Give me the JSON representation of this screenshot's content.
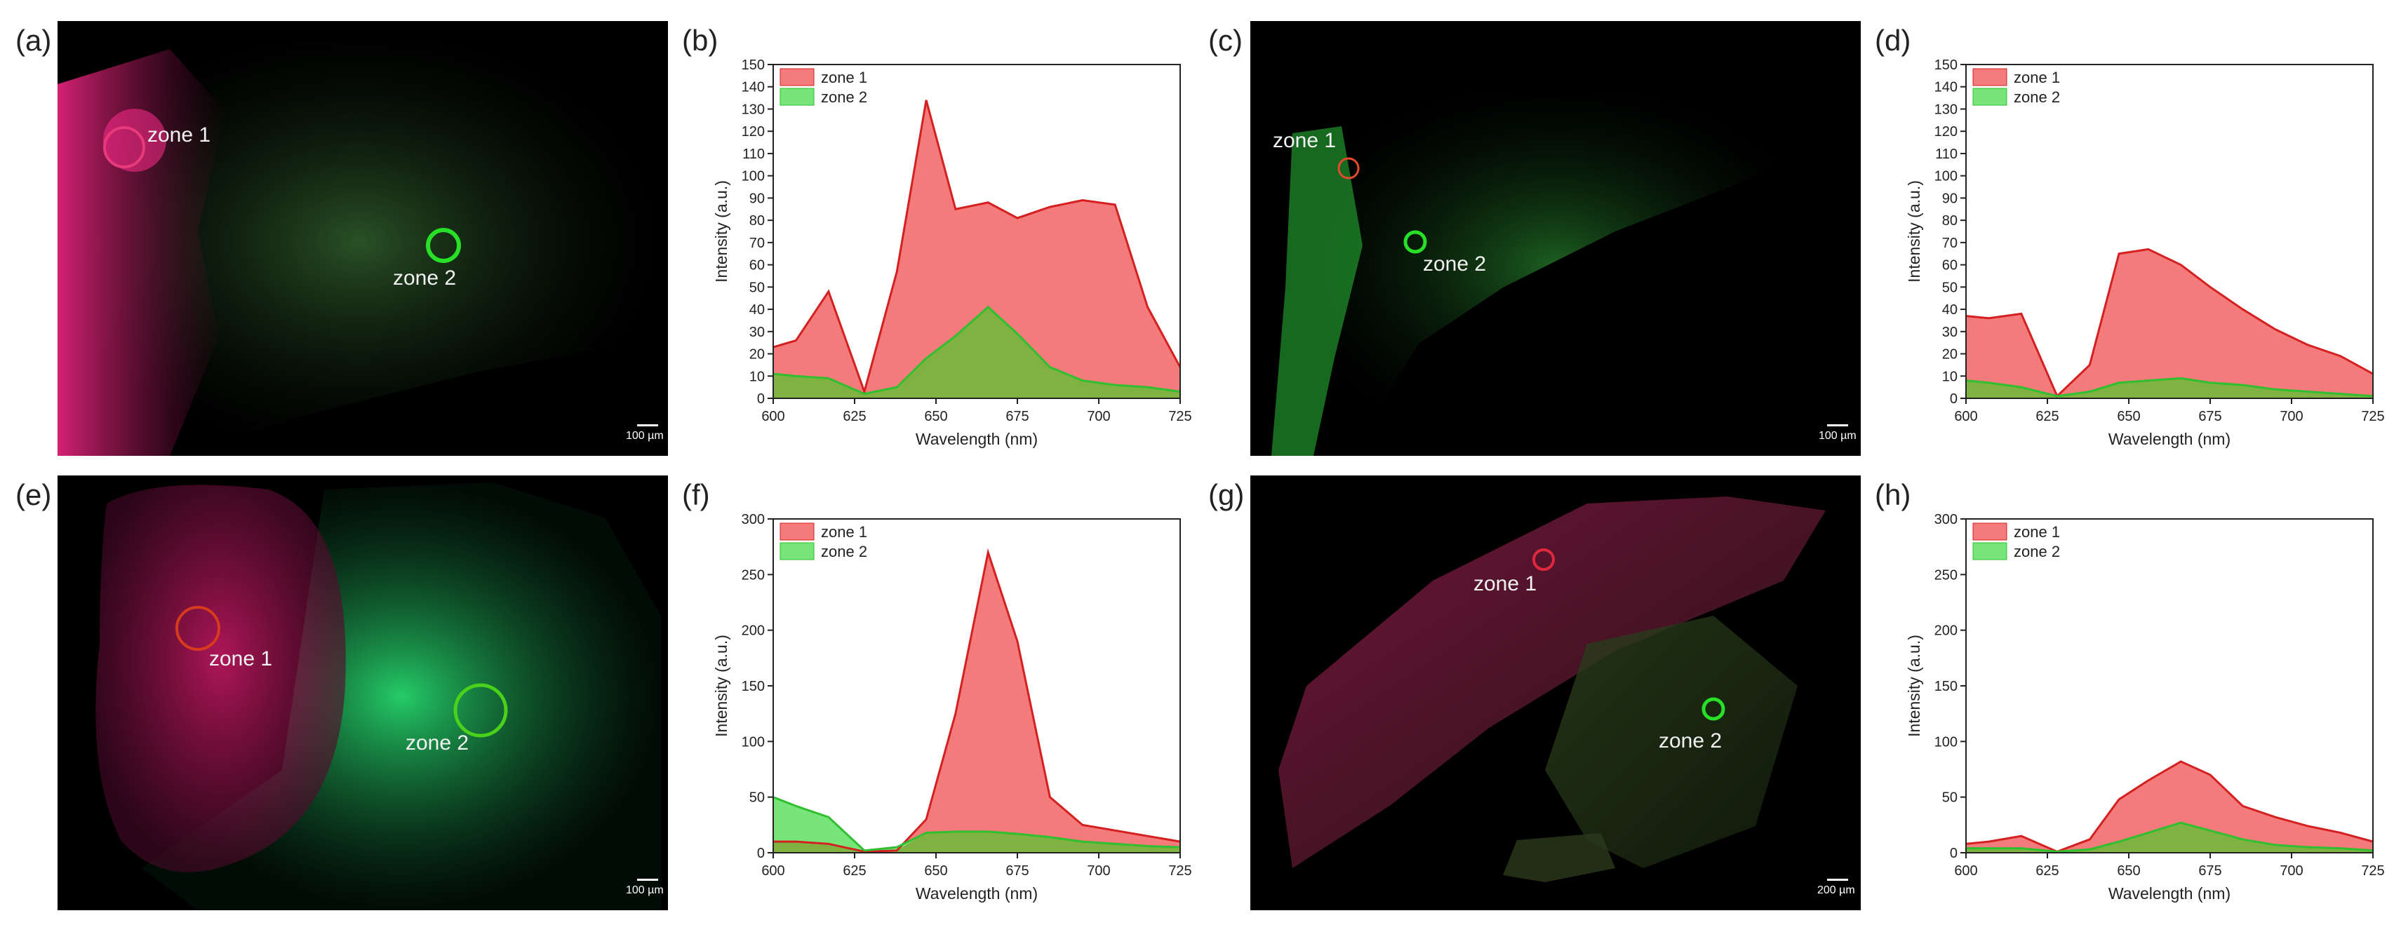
{
  "panels": {
    "a": "(a)",
    "b": "(b)",
    "c": "(c)",
    "d": "(d)",
    "e": "(e)",
    "f": "(f)",
    "g": "(g)",
    "h": "(h)"
  },
  "images": [
    {
      "zone1": "zone 1",
      "zone2": "zone 2",
      "scale": "100 µm"
    },
    {
      "zone1": "zone 1",
      "zone2": "zone 2",
      "scale": "100 µm"
    },
    {
      "zone1": "zone 1",
      "zone2": "zone 2",
      "scale": "100 µm"
    },
    {
      "zone1": "zone 1",
      "zone2": "zone 2",
      "scale": "200 µm"
    }
  ],
  "colors": {
    "zone1_fill": "#f47b7b",
    "zone1_line": "#d42020",
    "zone2_fill": "#78e57a",
    "zone2_line": "#2fbf2f",
    "overlap_fill": "#7fb241"
  },
  "chart_data": [
    {
      "type": "area",
      "panel": "(b)",
      "x": [
        600,
        607,
        617,
        628,
        638,
        647,
        656,
        666,
        675,
        685,
        695,
        705,
        715,
        725
      ],
      "series": [
        {
          "name": "zone 1",
          "values": [
            23,
            26,
            48,
            3,
            57,
            134,
            85,
            88,
            81,
            86,
            89,
            87,
            41,
            14
          ]
        },
        {
          "name": "zone 2",
          "values": [
            11,
            10,
            9,
            2,
            5,
            18,
            28,
            41,
            29,
            14,
            8,
            6,
            5,
            3
          ]
        }
      ],
      "xlabel": "Wavelength (nm)",
      "ylabel": "Intensity (a.u.)",
      "xlim": [
        600,
        725
      ],
      "ylim": [
        0,
        150
      ],
      "xticks": [
        600,
        625,
        650,
        675,
        700,
        725
      ],
      "yticks": [
        0,
        10,
        20,
        30,
        40,
        50,
        60,
        70,
        80,
        90,
        100,
        110,
        120,
        130,
        140,
        150
      ],
      "legend": "top-left"
    },
    {
      "type": "area",
      "panel": "(d)",
      "x": [
        600,
        607,
        617,
        628,
        638,
        647,
        656,
        666,
        675,
        685,
        695,
        705,
        715,
        725
      ],
      "series": [
        {
          "name": "zone 1",
          "values": [
            37,
            36,
            38,
            1,
            15,
            65,
            67,
            60,
            50,
            40,
            31,
            24,
            19,
            11
          ]
        },
        {
          "name": "zone 2",
          "values": [
            8,
            7,
            5,
            1,
            3,
            7,
            8,
            9,
            7,
            6,
            4,
            3,
            2,
            1
          ]
        }
      ],
      "xlabel": "Wavelength (nm)",
      "ylabel": "Intensity (a.u.)",
      "xlim": [
        600,
        725
      ],
      "ylim": [
        0,
        150
      ],
      "xticks": [
        600,
        625,
        650,
        675,
        700,
        725
      ],
      "yticks": [
        0,
        10,
        20,
        30,
        40,
        50,
        60,
        70,
        80,
        90,
        100,
        110,
        120,
        130,
        140,
        150
      ],
      "legend": "top-left"
    },
    {
      "type": "area",
      "panel": "(f)",
      "x": [
        600,
        607,
        617,
        628,
        638,
        647,
        656,
        666,
        675,
        685,
        695,
        705,
        715,
        725
      ],
      "series": [
        {
          "name": "zone 1",
          "values": [
            10,
            10,
            8,
            1,
            2,
            30,
            125,
            270,
            190,
            50,
            25,
            20,
            15,
            10
          ]
        },
        {
          "name": "zone 2",
          "values": [
            50,
            42,
            32,
            2,
            5,
            18,
            19,
            19,
            17,
            14,
            10,
            8,
            6,
            5
          ]
        }
      ],
      "xlabel": "Wavelength (nm)",
      "ylabel": "Intensity (a.u.)",
      "xlim": [
        600,
        725
      ],
      "ylim": [
        0,
        300
      ],
      "xticks": [
        600,
        625,
        650,
        675,
        700,
        725
      ],
      "yticks": [
        0,
        50,
        100,
        150,
        200,
        250,
        300
      ],
      "legend": "top-left"
    },
    {
      "type": "area",
      "panel": "(h)",
      "x": [
        600,
        607,
        617,
        628,
        638,
        647,
        656,
        666,
        675,
        685,
        695,
        705,
        715,
        725
      ],
      "series": [
        {
          "name": "zone 1",
          "values": [
            8,
            10,
            15,
            1,
            12,
            48,
            65,
            82,
            70,
            42,
            32,
            24,
            18,
            10
          ]
        },
        {
          "name": "zone 2",
          "values": [
            4,
            4,
            4,
            1,
            3,
            10,
            18,
            27,
            20,
            12,
            7,
            5,
            4,
            2
          ]
        }
      ],
      "xlabel": "Wavelength (nm)",
      "ylabel": "Intensity (a.u.)",
      "xlim": [
        600,
        725
      ],
      "ylim": [
        0,
        300
      ],
      "xticks": [
        600,
        625,
        650,
        675,
        700,
        725
      ],
      "yticks": [
        0,
        50,
        100,
        150,
        200,
        250,
        300
      ],
      "legend": "top-left"
    }
  ]
}
